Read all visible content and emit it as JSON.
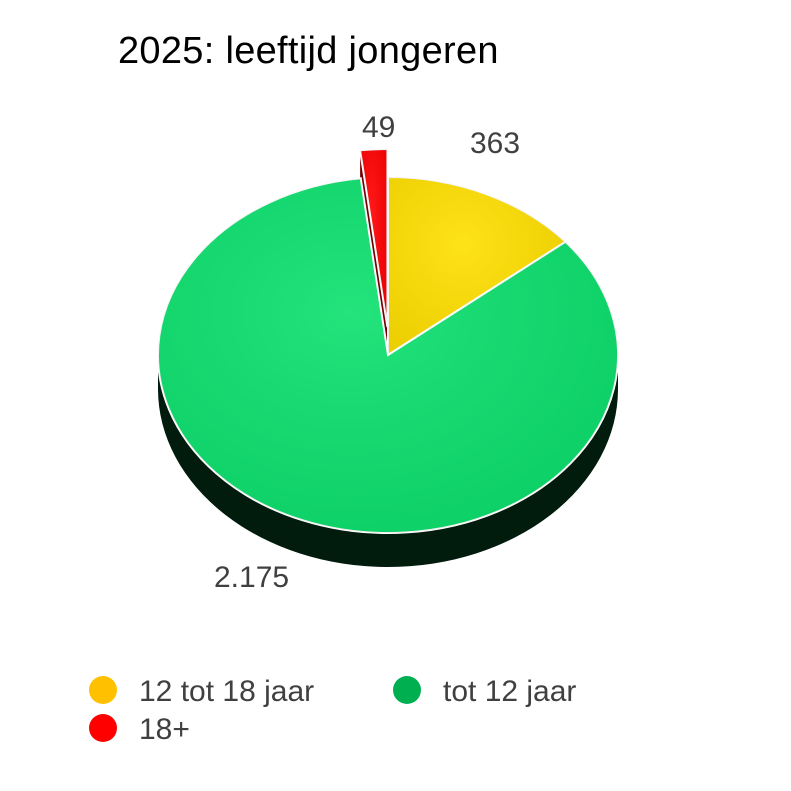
{
  "chart_data": {
    "type": "pie",
    "title": "2025: leeftijd jongeren",
    "categories": [
      "12 tot 18 jaar",
      "tot 12 jaar",
      "18+"
    ],
    "values": [
      363,
      2175,
      49
    ],
    "value_labels": [
      "363",
      "2.175",
      "49"
    ],
    "colors": [
      "#ffe000",
      "#0be06d",
      "#ff0000"
    ],
    "legend_colors": [
      "#ffc000",
      "#00b050",
      "#ff0000"
    ],
    "exploded": [
      "18+"
    ],
    "legend_position": "bottom",
    "style": "3d"
  }
}
